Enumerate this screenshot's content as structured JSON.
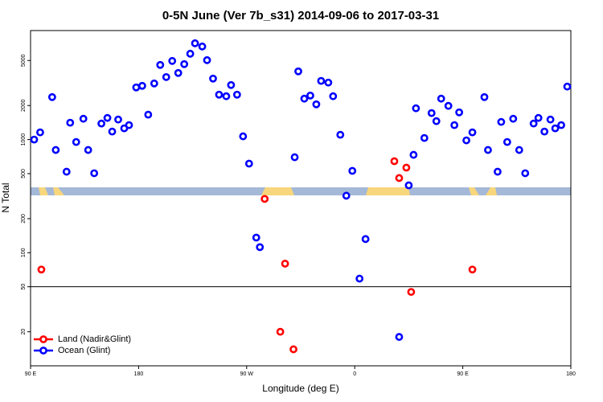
{
  "chart_data": {
    "type": "scatter",
    "title": "0-5N June (Ver 7b_s31)   2014-09-06 to 2017-03-31",
    "x_label": "Longitude (deg E)",
    "y_label": "N Total",
    "log_y": true,
    "hline": 50,
    "legend": "bottom-left",
    "xlim": [
      90,
      540
    ],
    "ylim": [
      10,
      9200
    ],
    "xticks": [
      {
        "value": 90,
        "label": "90 E"
      },
      180,
      {
        "value": 270,
        "label": "90 W"
      },
      {
        "value": 360,
        "label": "0"
      },
      {
        "value": 450,
        "label": "90 E"
      },
      {
        "value": 540,
        "label": "180"
      }
    ],
    "yticks": [
      20,
      50,
      100,
      200,
      500,
      1000,
      2000,
      5000
    ],
    "series": [
      {
        "name": "Land (Nadir&Glint)",
        "color": "#ff0000",
        "x": [
          99,
          285,
          302,
          298,
          309,
          393,
          397,
          403,
          407,
          458
        ],
        "values": [
          71,
          299,
          80,
          20,
          14,
          644,
          457,
          565,
          45,
          71
        ]
      },
      {
        "name": "Ocean (Glint)",
        "color": "#0000ff",
        "x": [
          93,
          98,
          108,
          111,
          120,
          123,
          128,
          134,
          138,
          143,
          149,
          154,
          158,
          163,
          168,
          172,
          178,
          183,
          188,
          193,
          198,
          203,
          208,
          213,
          218,
          223,
          227,
          233,
          237,
          242,
          247,
          253,
          257,
          262,
          267,
          272,
          278,
          281,
          310,
          313,
          318,
          323,
          328,
          332,
          338,
          342,
          348,
          353,
          358,
          364,
          369,
          397,
          405,
          409,
          411,
          418,
          424,
          428,
          432,
          438,
          443,
          447,
          453,
          458,
          468,
          471,
          479,
          482,
          487,
          492,
          497,
          502,
          509,
          513,
          518,
          523,
          527,
          532,
          537
        ],
        "values": [
          1000,
          1158,
          2375,
          809,
          520,
          1409,
          952,
          1528,
          809,
          504,
          1386,
          1554,
          1177,
          1503,
          1257,
          1342,
          2891,
          2986,
          1660,
          3134,
          4570,
          3570,
          4955,
          3881,
          4645,
          5740,
          7100,
          6650,
          5035,
          3460,
          2495,
          2416,
          3035,
          2495,
          1068,
          613,
          136,
          112,
          698,
          4010,
          2300,
          2450,
          2050,
          3300,
          3190,
          2416,
          1103,
          319,
          529,
          59,
          132,
          18,
          394,
          733,
          1890,
          1033,
          1715,
          1455,
          2300,
          1985,
          1342,
          1740,
          984,
          1158,
          2375,
          809,
          520,
          1432,
          952,
          1528,
          809,
          504,
          1386,
          1554,
          1177,
          1503,
          1257,
          1342,
          2940
        ]
      }
    ]
  }
}
